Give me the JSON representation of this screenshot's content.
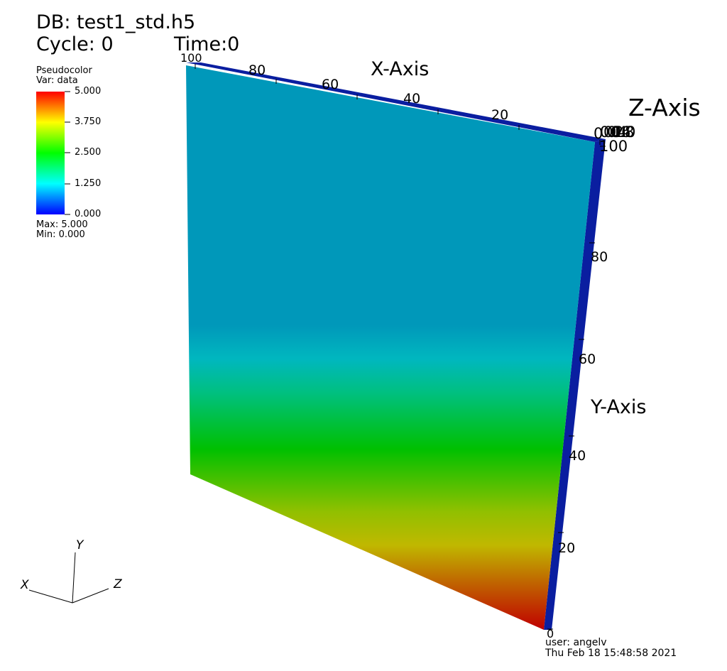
{
  "header": {
    "db_label": "DB: test1_std.h5",
    "cycle_label": "Cycle: 0",
    "time_label": "Time:0"
  },
  "legend": {
    "plot_type": "Pseudocolor",
    "variable": "Var: data",
    "tick_labels": [
      "5.000",
      "3.750",
      "2.500",
      "1.250",
      "0.000"
    ],
    "max_label": "Max:  5.000",
    "min_label": "Min:  0.000",
    "colormap": [
      "#0000ff",
      "#00ffff",
      "#00ff00",
      "#ffff00",
      "#ff0000"
    ]
  },
  "axes": {
    "x_title": "X-Axis",
    "y_title": "Y-Axis",
    "z_title": "Z-Axis",
    "x_tick_labels": [
      "100",
      "80",
      "60",
      "40",
      "20",
      "0"
    ],
    "y_tick_labels": [
      "0",
      "20",
      "40",
      "60",
      "80",
      "100"
    ],
    "z_tick_labels": [
      "0",
      "0.2",
      "0.4",
      "0.6",
      "0.8",
      "1.0"
    ]
  },
  "triad": {
    "x": "X",
    "y": "Y",
    "z": "Z"
  },
  "footer": {
    "user": "user: angelv",
    "date": "Thu Feb 18 15:48:58 2021"
  },
  "colors": {
    "face_top": "#0098ba",
    "slab_side": "#0a1ea0",
    "edge": "#000080"
  }
}
